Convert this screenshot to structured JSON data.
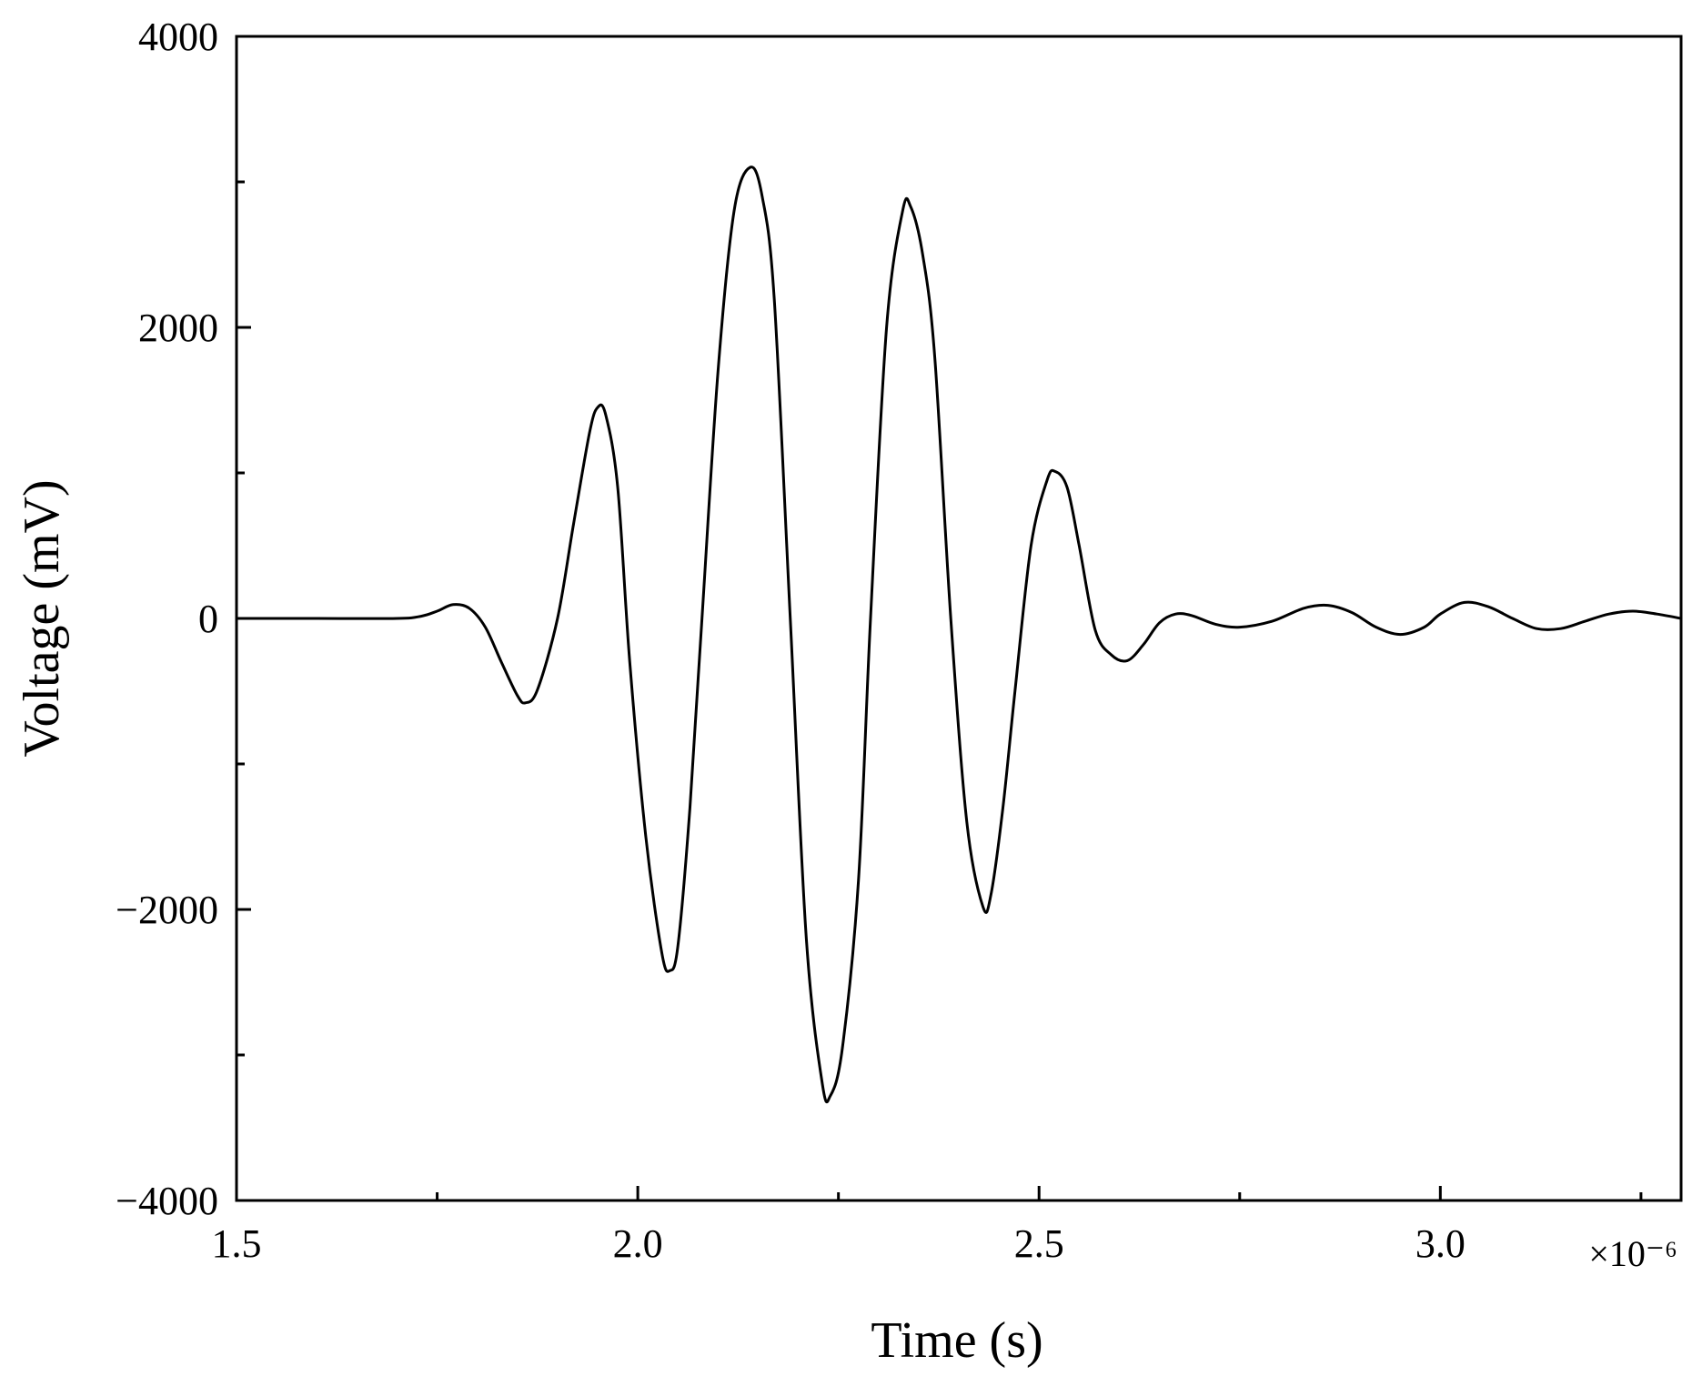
{
  "chart_data": {
    "type": "line",
    "xlabel": "Time (s)",
    "ylabel": "Voltage (mV)",
    "x_exponent_label": "×10⁻⁶",
    "x_scale_note": "x axis values are in units of 10^-6 s",
    "xlim": [
      1.5,
      3.3
    ],
    "ylim": [
      -4000,
      4000
    ],
    "x_ticks": [
      {
        "value": 1.5,
        "label": "1.5"
      },
      {
        "value": 2.0,
        "label": "2.0"
      },
      {
        "value": 2.5,
        "label": "2.5"
      },
      {
        "value": 3.0,
        "label": "3.0"
      }
    ],
    "x_minor_ticks": [
      1.75,
      2.25,
      2.75,
      3.25
    ],
    "y_ticks": [
      {
        "value": 4000,
        "label": "4000"
      },
      {
        "value": 2000,
        "label": "2000"
      },
      {
        "value": 0,
        "label": "0"
      },
      {
        "value": -2000,
        "label": "−2000"
      },
      {
        "value": -4000,
        "label": "−4000"
      }
    ],
    "y_minor_ticks": [
      3000,
      1000,
      -1000,
      -3000
    ],
    "grid": false,
    "line_color": "#000000",
    "series": [
      {
        "points": [
          [
            1.5,
            0
          ],
          [
            1.6,
            0
          ],
          [
            1.7,
            0
          ],
          [
            1.73,
            15
          ],
          [
            1.75,
            50
          ],
          [
            1.77,
            95
          ],
          [
            1.79,
            70
          ],
          [
            1.81,
            -60
          ],
          [
            1.83,
            -300
          ],
          [
            1.85,
            -530
          ],
          [
            1.86,
            -580
          ],
          [
            1.875,
            -490
          ],
          [
            1.9,
            0
          ],
          [
            1.92,
            650
          ],
          [
            1.94,
            1280
          ],
          [
            1.95,
            1450
          ],
          [
            1.96,
            1400
          ],
          [
            1.975,
            900
          ],
          [
            1.99,
            -300
          ],
          [
            2.01,
            -1500
          ],
          [
            2.03,
            -2300
          ],
          [
            2.04,
            -2420
          ],
          [
            2.05,
            -2250
          ],
          [
            2.065,
            -1300
          ],
          [
            2.08,
            0
          ],
          [
            2.1,
            1700
          ],
          [
            2.12,
            2800
          ],
          [
            2.14,
            3100
          ],
          [
            2.155,
            2900
          ],
          [
            2.17,
            2200
          ],
          [
            2.19,
            0
          ],
          [
            2.21,
            -2200
          ],
          [
            2.23,
            -3200
          ],
          [
            2.24,
            -3280
          ],
          [
            2.255,
            -2950
          ],
          [
            2.275,
            -1800
          ],
          [
            2.29,
            0
          ],
          [
            2.31,
            2000
          ],
          [
            2.33,
            2800
          ],
          [
            2.34,
            2830
          ],
          [
            2.355,
            2500
          ],
          [
            2.37,
            1800
          ],
          [
            2.39,
            0
          ],
          [
            2.41,
            -1400
          ],
          [
            2.43,
            -1980
          ],
          [
            2.44,
            -1900
          ],
          [
            2.455,
            -1300
          ],
          [
            2.47,
            -500
          ],
          [
            2.49,
            500
          ],
          [
            2.51,
            950
          ],
          [
            2.52,
            1010
          ],
          [
            2.535,
            900
          ],
          [
            2.55,
            500
          ],
          [
            2.57,
            -80
          ],
          [
            2.59,
            -250
          ],
          [
            2.61,
            -290
          ],
          [
            2.63,
            -180
          ],
          [
            2.65,
            -30
          ],
          [
            2.67,
            30
          ],
          [
            2.69,
            20
          ],
          [
            2.72,
            -40
          ],
          [
            2.75,
            -60
          ],
          [
            2.79,
            -20
          ],
          [
            2.83,
            70
          ],
          [
            2.86,
            90
          ],
          [
            2.89,
            40
          ],
          [
            2.92,
            -60
          ],
          [
            2.95,
            -110
          ],
          [
            2.98,
            -60
          ],
          [
            3.0,
            30
          ],
          [
            3.03,
            110
          ],
          [
            3.06,
            80
          ],
          [
            3.09,
            0
          ],
          [
            3.12,
            -70
          ],
          [
            3.15,
            -70
          ],
          [
            3.18,
            -20
          ],
          [
            3.21,
            30
          ],
          [
            3.24,
            50
          ],
          [
            3.27,
            30
          ],
          [
            3.3,
            0
          ]
        ]
      }
    ]
  }
}
